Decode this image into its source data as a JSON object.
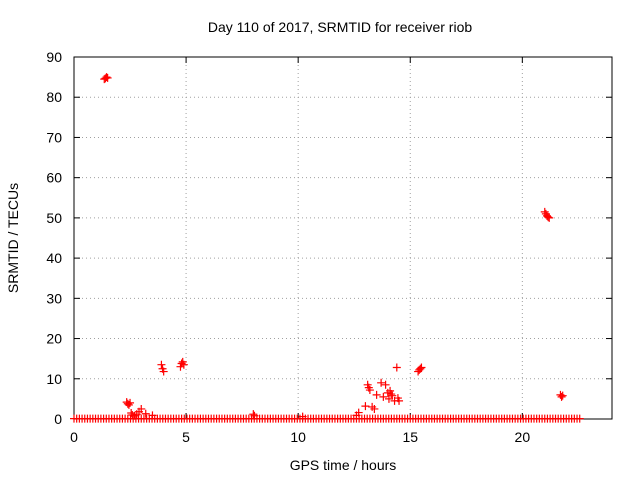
{
  "chart_data": {
    "type": "scatter",
    "title": "Day 110 of 2017, SRMTID for receiver riob",
    "xlabel": "GPS time / hours",
    "ylabel": "SRMTID / TECUs",
    "xlim": [
      0,
      24
    ],
    "ylim": [
      0,
      90
    ],
    "xticks": [
      0,
      5,
      10,
      15,
      20
    ],
    "yticks": [
      0,
      10,
      20,
      30,
      40,
      50,
      60,
      70,
      80,
      90
    ],
    "xtick_labels": [
      "0",
      "5",
      "10",
      "15",
      "20"
    ],
    "ytick_labels": [
      "0",
      "10",
      "20",
      "30",
      "40",
      "50",
      "60",
      "70",
      "80",
      "90"
    ],
    "grid": true,
    "marker": "+",
    "series": [
      {
        "name": "SRMTID",
        "color": "#ff0000",
        "baseline": {
          "x_start": 0.0,
          "x_end": 22.6,
          "step": 0.12,
          "y": 0.1
        },
        "x": [
          1.35,
          1.4,
          1.45,
          1.5,
          2.35,
          2.4,
          2.45,
          2.5,
          2.55,
          2.6,
          2.7,
          2.8,
          2.9,
          3.0,
          3.2,
          3.5,
          3.9,
          3.95,
          4.0,
          4.75,
          4.8,
          4.85,
          4.9,
          8.0,
          8.05,
          10.2,
          12.6,
          12.7,
          13.0,
          13.1,
          13.15,
          13.2,
          13.3,
          13.4,
          13.5,
          13.7,
          13.8,
          13.9,
          14.0,
          14.05,
          14.1,
          14.15,
          14.2,
          14.3,
          14.4,
          14.45,
          14.5,
          15.35,
          15.4,
          15.45,
          15.5,
          21.0,
          21.05,
          21.1,
          21.15,
          21.2,
          21.7,
          21.75,
          21.8
        ],
        "y": [
          84.5,
          84.7,
          85.0,
          84.8,
          4.2,
          3.8,
          3.5,
          4.0,
          1.5,
          1.0,
          0.8,
          1.2,
          1.8,
          2.5,
          1.3,
          0.9,
          13.5,
          12.5,
          11.8,
          13.0,
          13.8,
          14.2,
          13.5,
          1.2,
          0.8,
          0.6,
          0.9,
          1.6,
          3.2,
          8.5,
          7.8,
          7.2,
          3.0,
          2.5,
          6.0,
          9.0,
          5.5,
          8.5,
          6.5,
          5.0,
          7.0,
          6.2,
          5.8,
          4.5,
          12.8,
          5.2,
          4.5,
          11.8,
          12.2,
          12.5,
          12.8,
          51.5,
          51.0,
          50.5,
          50.2,
          50.0,
          6.0,
          5.5,
          5.8
        ]
      }
    ]
  }
}
